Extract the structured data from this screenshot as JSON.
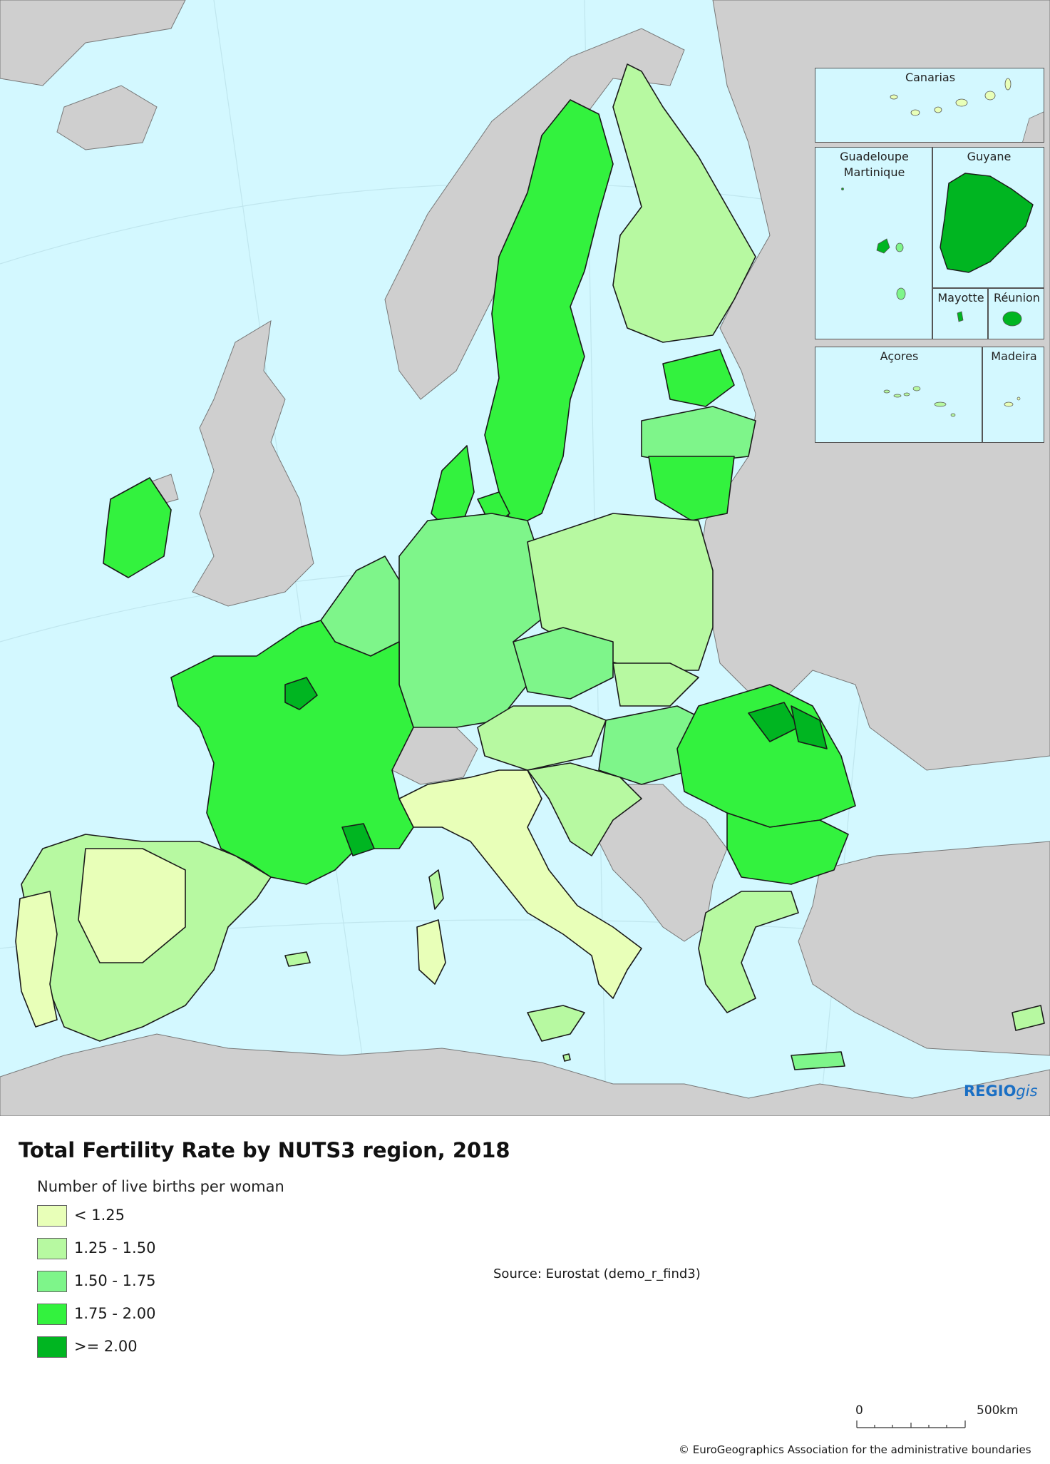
{
  "title": "Total Fertility Rate by NUTS3 region, 2018",
  "legend": {
    "title": "Number of live births per woman",
    "classes": [
      {
        "label": "< 1.25",
        "color": "#e8ffb8"
      },
      {
        "label": "1.25 - 1.50",
        "color": "#b7f9a1"
      },
      {
        "label": "1.50 - 1.75",
        "color": "#7ef58a"
      },
      {
        "label": "1.75 - 2.00",
        "color": "#33f23e"
      },
      {
        "label": ">= 2.00",
        "color": "#00b521"
      }
    ]
  },
  "colors": {
    "sea": "#d3f8ff",
    "non_eu_land": "#cfcfcf",
    "border": "#1a1a1a",
    "brand": "#1a6fc4"
  },
  "insets": {
    "canarias": "Canarias",
    "guadeloupe": "Guadeloupe",
    "martinique": "Martinique",
    "guyane": "Guyane",
    "mayotte": "Mayotte",
    "reunion": "Réunion",
    "acores": "Açores",
    "madeira": "Madeira"
  },
  "branding": {
    "regio": "REGIO",
    "gis": "gis"
  },
  "source": "Source: Eurostat (demo_r_find3)",
  "scale": {
    "start": "0",
    "end": "500",
    "unit": "km"
  },
  "copyright": "© EuroGeographics Association for the administrative boundaries"
}
